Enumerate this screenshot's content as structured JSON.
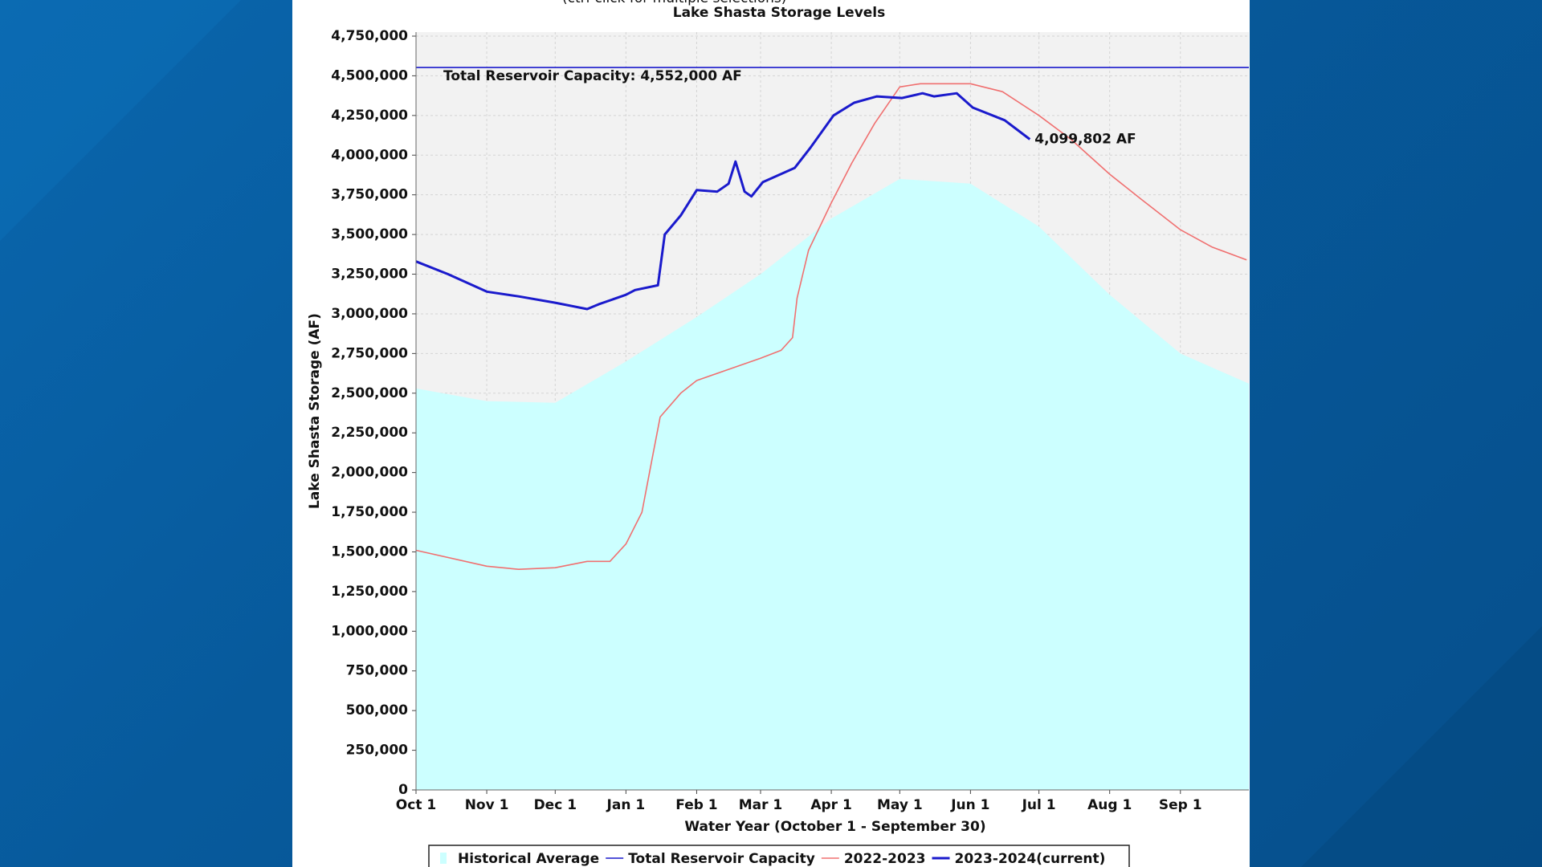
{
  "chart_data": {
    "type": "line",
    "title": "Lake Shasta Storage Levels",
    "note": "(ctrl-click for multiple selections)",
    "x_label": "Water Year (October 1 - September 30)",
    "y_label": "Lake Shasta Storage (AF)",
    "xlim": [
      0,
      365
    ],
    "ylim": [
      0,
      4750000
    ],
    "grid": true,
    "xticks": [
      {
        "value": 0,
        "label": "Oct 1"
      },
      {
        "value": 31,
        "label": "Nov 1"
      },
      {
        "value": 61,
        "label": "Dec 1"
      },
      {
        "value": 92,
        "label": "Jan 1"
      },
      {
        "value": 123,
        "label": "Feb 1"
      },
      {
        "value": 151,
        "label": "Mar 1"
      },
      {
        "value": 182,
        "label": "Apr 1"
      },
      {
        "value": 212,
        "label": "May 1"
      },
      {
        "value": 243,
        "label": "Jun 1"
      },
      {
        "value": 273,
        "label": "Jul 1"
      },
      {
        "value": 304,
        "label": "Aug 1"
      },
      {
        "value": 335,
        "label": "Sep 1"
      }
    ],
    "yticks": [
      0,
      {
        "value": 250000,
        "label": "250,000"
      },
      {
        "value": 500000,
        "label": "500,000"
      },
      {
        "value": 750000,
        "label": "750,000"
      },
      {
        "value": 1000000,
        "label": "1,000,000"
      },
      {
        "value": 1250000,
        "label": "1,250,000"
      },
      {
        "value": 1500000,
        "label": "1,500,000"
      },
      {
        "value": 1750000,
        "label": "1,750,000"
      },
      {
        "value": 2000000,
        "label": "2,000,000"
      },
      {
        "value": 2250000,
        "label": "2,250,000"
      },
      {
        "value": 2500000,
        "label": "2,500,000"
      },
      {
        "value": 2750000,
        "label": "2,750,000"
      },
      {
        "value": 3000000,
        "label": "3,000,000"
      },
      {
        "value": 3250000,
        "label": "3,250,000"
      },
      {
        "value": 3500000,
        "label": "3,500,000"
      },
      {
        "value": 3750000,
        "label": "3,750,000"
      },
      {
        "value": 4000000,
        "label": "4,000,000"
      },
      {
        "value": 4250000,
        "label": "4,250,000"
      },
      {
        "value": 4500000,
        "label": "4,500,000"
      },
      {
        "value": 4750000,
        "label": "4,750,000"
      }
    ],
    "series": [
      {
        "name": "Historical Average",
        "kind": "area",
        "color": "#ccffff",
        "x": [
          0,
          31,
          61,
          92,
          123,
          151,
          182,
          212,
          243,
          273,
          304,
          335,
          365
        ],
        "values": [
          2530000,
          2450000,
          2440000,
          2700000,
          2980000,
          3250000,
          3600000,
          3850000,
          3820000,
          3550000,
          3120000,
          2750000,
          2560000
        ]
      },
      {
        "name": "Total Reservoir Capacity",
        "kind": "line",
        "color": "#1a1acc",
        "label": "Total Reservoir Capacity: 4,552,000 AF",
        "x": [
          0,
          365
        ],
        "values": [
          4552000,
          4552000
        ]
      },
      {
        "name": "2022-2023",
        "kind": "line",
        "color": "#f07070",
        "x": [
          0,
          31,
          45,
          61,
          75,
          85,
          92,
          99,
          103,
          107,
          116,
          123,
          137,
          151,
          160,
          165,
          167,
          172,
          182,
          191,
          201,
          212,
          221,
          243,
          257,
          273,
          287,
          304,
          318,
          335,
          349,
          364
        ],
        "values": [
          1510000,
          1410000,
          1390000,
          1400000,
          1440000,
          1440000,
          1550000,
          1750000,
          2050000,
          2350000,
          2500000,
          2580000,
          2650000,
          2720000,
          2770000,
          2850000,
          3100000,
          3400000,
          3700000,
          3950000,
          4200000,
          4430000,
          4450000,
          4450000,
          4400000,
          4250000,
          4100000,
          3880000,
          3720000,
          3530000,
          3420000,
          3340000
        ]
      },
      {
        "name": "2023-2024(current)",
        "kind": "line",
        "color": "#1a1acc",
        "width": 3,
        "x": [
          0,
          14,
          31,
          45,
          61,
          75,
          80,
          92,
          96,
          106,
          109,
          116,
          123,
          132,
          137,
          140,
          144,
          147,
          152,
          166,
          173,
          183,
          192,
          202,
          213,
          222,
          227,
          237,
          244,
          258,
          269
        ],
        "values": [
          3330000,
          3250000,
          3140000,
          3110000,
          3070000,
          3030000,
          3060000,
          3120000,
          3150000,
          3180000,
          3500000,
          3620000,
          3780000,
          3770000,
          3820000,
          3960000,
          3770000,
          3740000,
          3830000,
          3920000,
          4050000,
          4250000,
          4330000,
          4370000,
          4360000,
          4390000,
          4370000,
          4390000,
          4300000,
          4220000,
          4099802
        ],
        "value_labels": [
          null,
          null,
          null,
          null,
          null,
          null,
          null,
          null,
          null,
          null,
          null,
          null,
          null,
          null,
          null,
          null,
          null,
          null,
          null,
          null,
          null,
          null,
          null,
          null,
          null,
          null,
          null,
          null,
          null,
          null,
          "4,099,802 AF"
        ]
      }
    ]
  }
}
